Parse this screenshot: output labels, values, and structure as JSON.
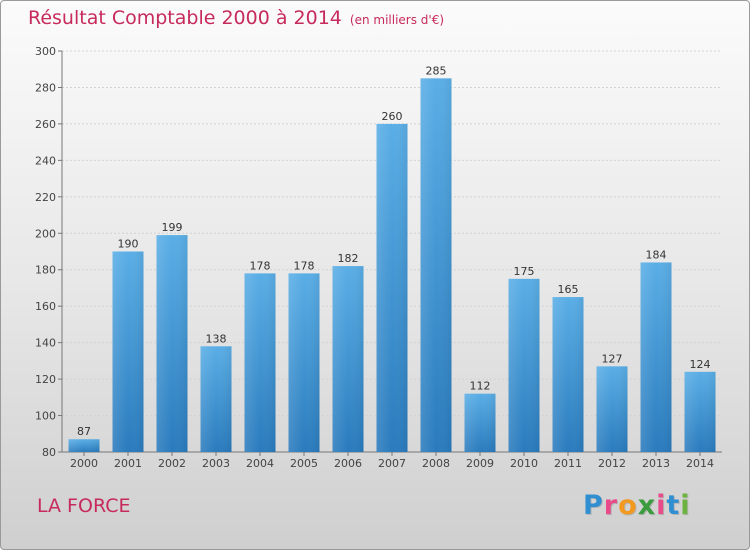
{
  "chart_data": {
    "type": "bar",
    "title": "Résultat Comptable 2000 à 2014",
    "subtitle": "(en milliers d'€)",
    "categories": [
      "2000",
      "2001",
      "2002",
      "2003",
      "2004",
      "2005",
      "2006",
      "2007",
      "2008",
      "2009",
      "2010",
      "2011",
      "2012",
      "2013",
      "2014"
    ],
    "values": [
      87,
      190,
      199,
      138,
      178,
      178,
      182,
      260,
      285,
      112,
      175,
      165,
      127,
      184,
      124
    ],
    "ylim": [
      80,
      300
    ],
    "yticks": [
      80,
      100,
      120,
      140,
      160,
      180,
      200,
      220,
      240,
      260,
      280,
      300
    ],
    "grid": true,
    "bar_color_top": "#5aaee6",
    "bar_color_bottom": "#2a7bbd"
  },
  "footer": {
    "commune": "LA FORCE",
    "logo_letters": [
      "P",
      "r",
      "o",
      "x",
      "i",
      "t",
      "i"
    ],
    "logo_colors": [
      "#2f8fd0",
      "#e84b8a",
      "#f29a1f",
      "#3b9c3f",
      "#e84b8a",
      "#2f8fd0",
      "#6cb33f"
    ]
  }
}
